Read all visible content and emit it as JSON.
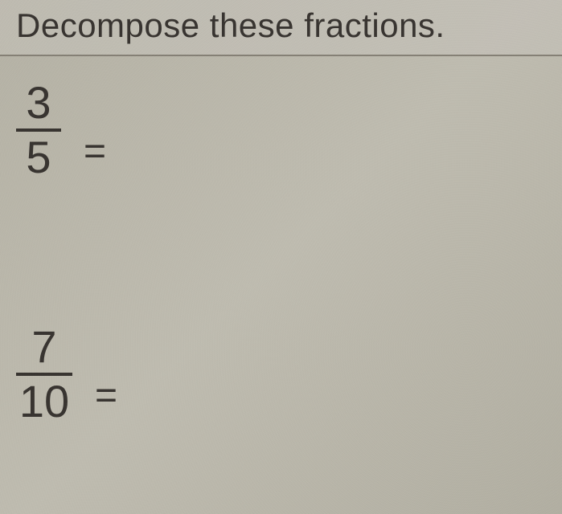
{
  "header": {
    "instruction": "Decompose these fractions."
  },
  "fractions": {
    "first": {
      "numerator": "3",
      "denominator": "5",
      "equals": "="
    },
    "second": {
      "numerator": "7",
      "denominator": "10",
      "equals": "="
    }
  },
  "styling": {
    "background_color": "#bcb9ac",
    "text_color": "#3a3632",
    "header_border_color": "#888378",
    "font_family": "Arial",
    "header_fontsize": 42,
    "fraction_fontsize": 56,
    "equals_fontsize": 48,
    "fraction_bar_width_narrow": 56,
    "fraction_bar_width_wide": 70,
    "fraction_bar_height": 4
  }
}
